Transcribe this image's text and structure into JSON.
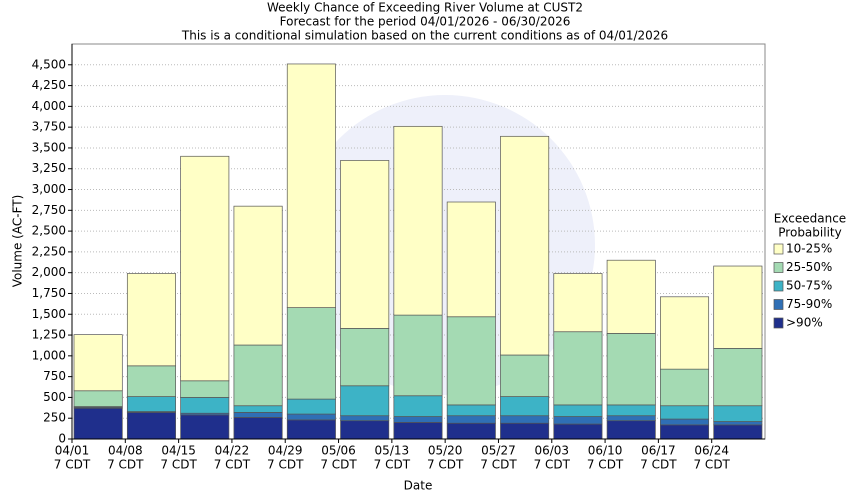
{
  "chart_data": {
    "type": "stacked_bar",
    "title": [
      "Weekly Chance of Exceeding River Volume at CUST2",
      "Forecast for the period 04/01/2026 - 06/30/2026",
      "This is a conditional simulation based on the current conditions as of 04/01/2026"
    ],
    "x_label": "Date",
    "y_label": "Volume (AC-FT)",
    "categories": [
      "04/01",
      "04/08",
      "04/15",
      "04/22",
      "04/29",
      "05/06",
      "05/13",
      "05/20",
      "05/27",
      "06/03",
      "06/10",
      "06/17",
      "06/24"
    ],
    "time_label": "7 CDT",
    "legend_title": [
      "Exceedance",
      "Probability"
    ],
    "series": [
      {
        "name": ">90%",
        "color": "#1f2f8c",
        "values": [
          370,
          320,
          290,
          260,
          230,
          220,
          200,
          190,
          190,
          180,
          220,
          170,
          170
        ]
      },
      {
        "name": "75-90%",
        "color": "#2f6fb5",
        "values": [
          10,
          10,
          20,
          60,
          70,
          60,
          70,
          90,
          90,
          90,
          60,
          70,
          40
        ]
      },
      {
        "name": "50-75%",
        "color": "#3db3c6",
        "values": [
          10,
          180,
          190,
          80,
          180,
          360,
          250,
          130,
          230,
          140,
          130,
          160,
          190
        ]
      },
      {
        "name": "25-50%",
        "color": "#a4dab3",
        "values": [
          190,
          370,
          200,
          730,
          1100,
          690,
          970,
          1060,
          500,
          880,
          860,
          440,
          690
        ]
      },
      {
        "name": "10-25%",
        "color": "#ffffc6",
        "values": [
          675,
          1110,
          2700,
          1670,
          2930,
          2020,
          2270,
          1380,
          2630,
          700,
          880,
          870,
          990
        ]
      }
    ],
    "ylim": [
      0,
      4750
    ],
    "yticks": [
      0,
      250,
      500,
      750,
      {
        "value": 1000,
        "label": "1,000"
      },
      {
        "value": 1250,
        "label": "1,250"
      },
      {
        "value": 1500,
        "label": "1,500"
      },
      {
        "value": 1750,
        "label": "1,750"
      },
      {
        "value": 2000,
        "label": "2,000"
      },
      {
        "value": 2250,
        "label": "2,250"
      },
      {
        "value": 2500,
        "label": "2,500"
      },
      {
        "value": 2750,
        "label": "2,750"
      },
      {
        "value": 3000,
        "label": "3,000"
      },
      {
        "value": 3250,
        "label": "3,250"
      },
      {
        "value": 3500,
        "label": "3,500"
      },
      {
        "value": 3750,
        "label": "3,750"
      },
      {
        "value": 4000,
        "label": "4,000"
      },
      {
        "value": 4250,
        "label": "4,250"
      },
      {
        "value": 4500,
        "label": "4,500"
      }
    ],
    "grid": true
  }
}
